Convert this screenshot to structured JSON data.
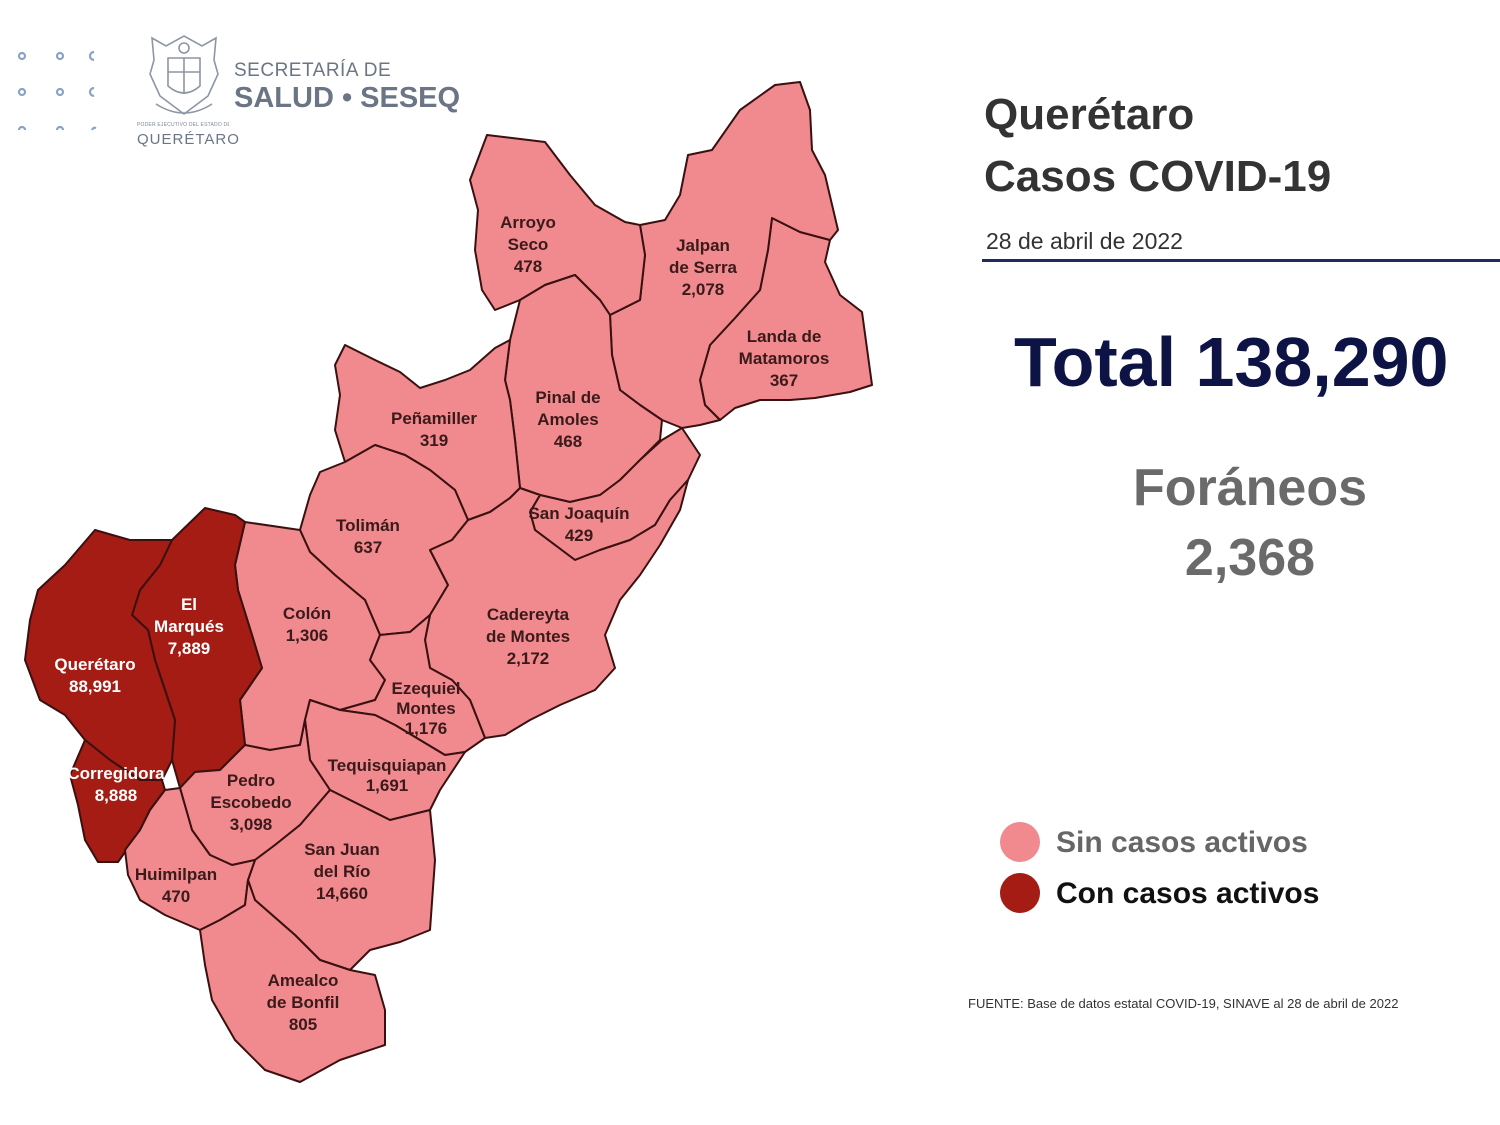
{
  "header": {
    "secretaria": "SECRETARÍA DE",
    "salud": "SALUD • SESEQ",
    "seal_caption": "PODER EJECUTIVO DEL ESTADO DE",
    "seal_state": "QUERÉTARO"
  },
  "title": {
    "line1": "Querétaro",
    "line2": "Casos COVID-19",
    "date": "28 de abril  de 2022"
  },
  "summary": {
    "total": "Total 138,290",
    "foraneos_label": "Foráneos",
    "foraneos_value": "2,368"
  },
  "legend": {
    "sin_label": "Sin casos activos",
    "con_label": "Con casos activos"
  },
  "source": "FUENTE:  Base de datos estatal  COVID-19,  SINAVE   al 28 de abril de 2022",
  "colors": {
    "sin_casos": "#f08a8e",
    "con_casos": "#a41c14",
    "border": "#3a1010",
    "title_text": "#333333",
    "total_text": "#0d1445",
    "foraneos_text": "#6a6a6a",
    "logo_gray": "#6b7585",
    "rule": "#1f2a5e"
  },
  "municipalities": [
    {
      "id": "arroyo-seco",
      "lines": [
        "Arroyo",
        "Seco",
        "478"
      ],
      "active": false
    },
    {
      "id": "jalpan-de-serra",
      "lines": [
        "Jalpan",
        "de Serra",
        "2,078"
      ],
      "active": false
    },
    {
      "id": "landa-de-matamoros",
      "lines": [
        "Landa de",
        "Matamoros",
        "367"
      ],
      "active": false
    },
    {
      "id": "pinal-de-amoles",
      "lines": [
        "Pinal de",
        "Amoles",
        "468"
      ],
      "active": false
    },
    {
      "id": "penamiller",
      "lines": [
        "Peñamiller",
        "319"
      ],
      "active": false
    },
    {
      "id": "san-joaquin",
      "lines": [
        "San Joaquín",
        "429"
      ],
      "active": false
    },
    {
      "id": "toliman",
      "lines": [
        "Tolimán",
        "637"
      ],
      "active": false
    },
    {
      "id": "cadereyta-de-montes",
      "lines": [
        "Cadereyta",
        "de Montes",
        "2,172"
      ],
      "active": false
    },
    {
      "id": "colon",
      "lines": [
        "Colón",
        "1,306"
      ],
      "active": false
    },
    {
      "id": "el-marques",
      "lines": [
        "El",
        "Marqués",
        "7,889"
      ],
      "active": true
    },
    {
      "id": "queretaro",
      "lines": [
        "Querétaro",
        "88,991"
      ],
      "active": true
    },
    {
      "id": "ezequiel-montes",
      "lines": [
        "Ezequiel",
        "Montes",
        "1,176"
      ],
      "active": false
    },
    {
      "id": "tequisquiapan",
      "lines": [
        "Tequisquiapan",
        "1,691"
      ],
      "active": false
    },
    {
      "id": "corregidora",
      "lines": [
        "Corregidora",
        "8,888"
      ],
      "active": true
    },
    {
      "id": "pedro-escobedo",
      "lines": [
        "Pedro",
        "Escobedo",
        "3,098"
      ],
      "active": false
    },
    {
      "id": "san-juan-del-rio",
      "lines": [
        "San Juan",
        "del Río",
        "14,660"
      ],
      "active": false
    },
    {
      "id": "huimilpan",
      "lines": [
        "Huimilpan",
        "470"
      ],
      "active": false
    },
    {
      "id": "amealco-de-bonfil",
      "lines": [
        "Amealco",
        "de Bonfil",
        "805"
      ],
      "active": false
    }
  ]
}
